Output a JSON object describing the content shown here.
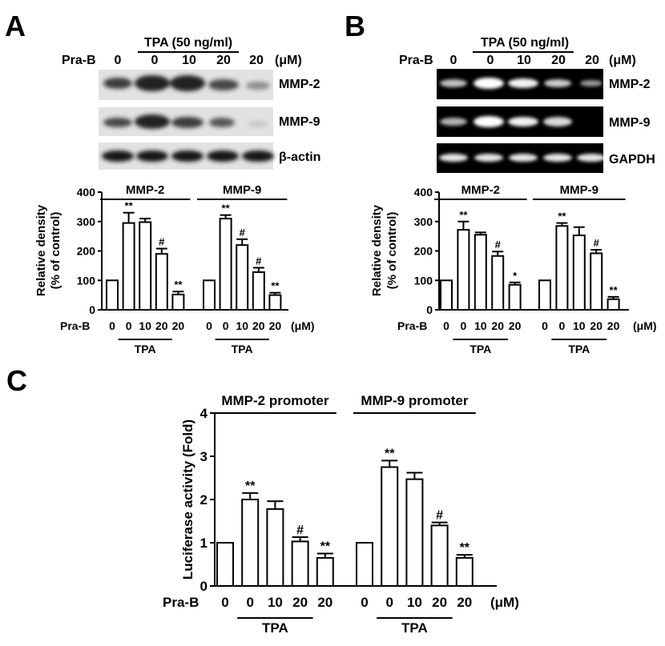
{
  "panels": {
    "A": {
      "letter": "A",
      "treatment_label": "TPA (50 ng/ml)",
      "row_label": "Pra-B",
      "lane_values": [
        "0",
        "0",
        "10",
        "20",
        "20"
      ],
      "unit": "(μM)",
      "blot_labels": [
        "MMP-2",
        "MMP-9",
        "β-actin"
      ]
    },
    "B": {
      "letter": "B",
      "treatment_label": "TPA (50 ng/ml)",
      "row_label": "Pra-B",
      "lane_values": [
        "0",
        "0",
        "10",
        "20",
        "20"
      ],
      "unit": "(μM)",
      "gel_labels": [
        "MMP-2",
        "MMP-9",
        "GAPDH"
      ]
    },
    "C": {
      "letter": "C"
    }
  },
  "chart_data": [
    {
      "panel": "A",
      "type": "bar",
      "ylabel": "Relative density (% of control)",
      "ylabel_lines": [
        "Relative density",
        "(% of control)"
      ],
      "ylim": [
        0,
        400
      ],
      "yticks": [
        "0",
        "100",
        "200",
        "300",
        "400"
      ],
      "x_row_label": "Pra-B",
      "x_unit": "(μM)",
      "groups": [
        {
          "name": "MMP-2",
          "treatment": "TPA",
          "categories": [
            "0",
            "0",
            "10",
            "20",
            "20"
          ],
          "values": [
            100,
            295,
            298,
            190,
            52
          ],
          "errors": [
            0,
            35,
            12,
            18,
            10
          ],
          "annotations": [
            "",
            "**",
            "",
            "#",
            "**"
          ]
        },
        {
          "name": "MMP-9",
          "treatment": "TPA",
          "categories": [
            "0",
            "0",
            "10",
            "20",
            "20"
          ],
          "values": [
            100,
            310,
            220,
            128,
            50
          ],
          "errors": [
            0,
            12,
            20,
            15,
            8
          ],
          "annotations": [
            "",
            "**",
            "#",
            "#",
            "**"
          ]
        }
      ]
    },
    {
      "panel": "B",
      "type": "bar",
      "ylabel": "Relative density (% of control)",
      "ylabel_lines": [
        "Relative density",
        "(% of control)"
      ],
      "ylim": [
        0,
        400
      ],
      "yticks": [
        "0",
        "100",
        "200",
        "300",
        "400"
      ],
      "x_row_label": "Pra-B",
      "x_unit": "(μM)",
      "groups": [
        {
          "name": "MMP-2",
          "treatment": "TPA",
          "categories": [
            "0",
            "0",
            "10",
            "20",
            "20"
          ],
          "values": [
            100,
            272,
            255,
            183,
            85
          ],
          "errors": [
            0,
            28,
            8,
            15,
            8
          ],
          "annotations": [
            "",
            "**",
            "",
            "#",
            "*"
          ]
        },
        {
          "name": "MMP-9",
          "treatment": "TPA",
          "categories": [
            "0",
            "0",
            "10",
            "20",
            "20"
          ],
          "values": [
            100,
            285,
            253,
            192,
            36
          ],
          "errors": [
            0,
            10,
            28,
            12,
            8
          ],
          "annotations": [
            "",
            "**",
            "",
            "#",
            "**"
          ]
        }
      ]
    },
    {
      "panel": "C",
      "type": "bar",
      "ylabel": "Luciferase activity (Fold)",
      "ylim": [
        0,
        4
      ],
      "yticks": [
        "0",
        "1",
        "2",
        "3",
        "4"
      ],
      "x_row_label": "Pra-B",
      "x_unit": "(μM)",
      "groups": [
        {
          "name": "MMP-2 promoter",
          "treatment": "TPA",
          "categories": [
            "0",
            "0",
            "10",
            "20",
            "20"
          ],
          "values": [
            1.0,
            2.0,
            1.78,
            1.03,
            0.65
          ],
          "errors": [
            0,
            0.15,
            0.18,
            0.1,
            0.1
          ],
          "annotations": [
            "",
            "**",
            "",
            "#",
            "**"
          ]
        },
        {
          "name": "MMP-9 promoter",
          "treatment": "TPA",
          "categories": [
            "0",
            "0",
            "10",
            "20",
            "20"
          ],
          "values": [
            1.0,
            2.75,
            2.47,
            1.4,
            0.65
          ],
          "errors": [
            0,
            0.15,
            0.15,
            0.07,
            0.07
          ],
          "annotations": [
            "",
            "**",
            "",
            "#",
            "**"
          ]
        }
      ]
    }
  ]
}
